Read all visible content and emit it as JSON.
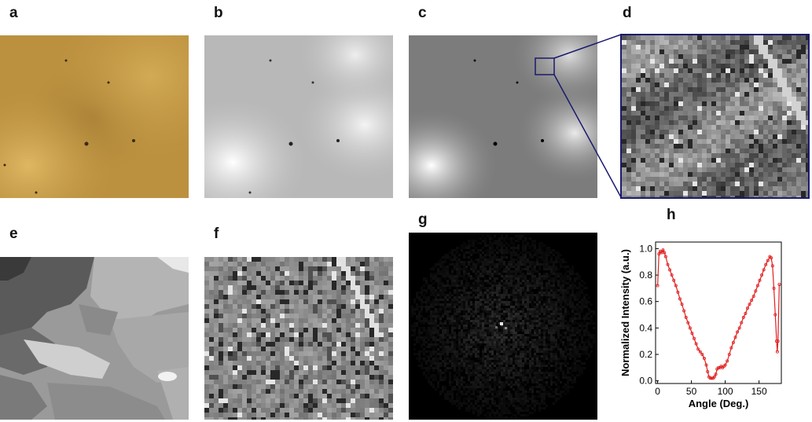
{
  "panels": {
    "a": "a",
    "b": "b",
    "c": "c",
    "d": "d",
    "e": "e",
    "f": "f",
    "g": "g",
    "h": "h"
  },
  "colors": {
    "tan": "#c49a47",
    "navy": "#1a1a6e",
    "curve": "#e02020"
  },
  "chart_data": {
    "type": "line",
    "title": "",
    "xlabel": "Angle (Deg.)",
    "ylabel": "Normalized Intensity (a.u.)",
    "xlim": [
      -3,
      183
    ],
    "ylim": [
      -0.02,
      1.05
    ],
    "xticks": [
      0,
      50,
      100,
      150
    ],
    "yticks": [
      0.0,
      0.2,
      0.4,
      0.6,
      0.8,
      1.0
    ],
    "xtick_labels": [
      "0",
      "50",
      "100",
      "150"
    ],
    "ytick_labels": [
      "0.0",
      "0.2",
      "0.4",
      "0.6",
      "0.8",
      "1.0"
    ],
    "grid": false,
    "series": [
      {
        "color": "#e02020",
        "x": [
          0,
          2,
          4,
          6,
          8,
          10,
          12,
          15,
          18,
          21,
          24,
          27,
          30,
          33,
          36,
          39,
          42,
          45,
          48,
          51,
          54,
          57,
          60,
          63,
          66,
          69,
          72,
          74,
          76,
          78,
          80,
          82,
          84,
          86,
          88,
          90,
          92,
          94,
          96,
          98,
          100,
          103,
          106,
          109,
          112,
          115,
          118,
          121,
          124,
          127,
          130,
          133,
          136,
          139,
          142,
          145,
          148,
          151,
          154,
          157,
          160,
          163,
          166,
          168,
          170,
          172,
          174,
          176,
          177,
          178,
          180
        ],
        "values": [
          0.72,
          0.96,
          0.98,
          0.97,
          0.99,
          0.97,
          0.94,
          0.88,
          0.84,
          0.8,
          0.76,
          0.72,
          0.67,
          0.62,
          0.58,
          0.53,
          0.48,
          0.44,
          0.4,
          0.36,
          0.32,
          0.28,
          0.24,
          0.22,
          0.2,
          0.17,
          0.12,
          0.07,
          0.03,
          0.02,
          0.02,
          0.02,
          0.03,
          0.05,
          0.09,
          0.1,
          0.1,
          0.11,
          0.1,
          0.11,
          0.12,
          0.15,
          0.2,
          0.25,
          0.29,
          0.33,
          0.37,
          0.4,
          0.44,
          0.48,
          0.51,
          0.55,
          0.58,
          0.61,
          0.64,
          0.68,
          0.72,
          0.76,
          0.8,
          0.84,
          0.88,
          0.91,
          0.94,
          0.93,
          0.87,
          0.7,
          0.5,
          0.3,
          0.22,
          0.3,
          0.73
        ]
      }
    ]
  }
}
